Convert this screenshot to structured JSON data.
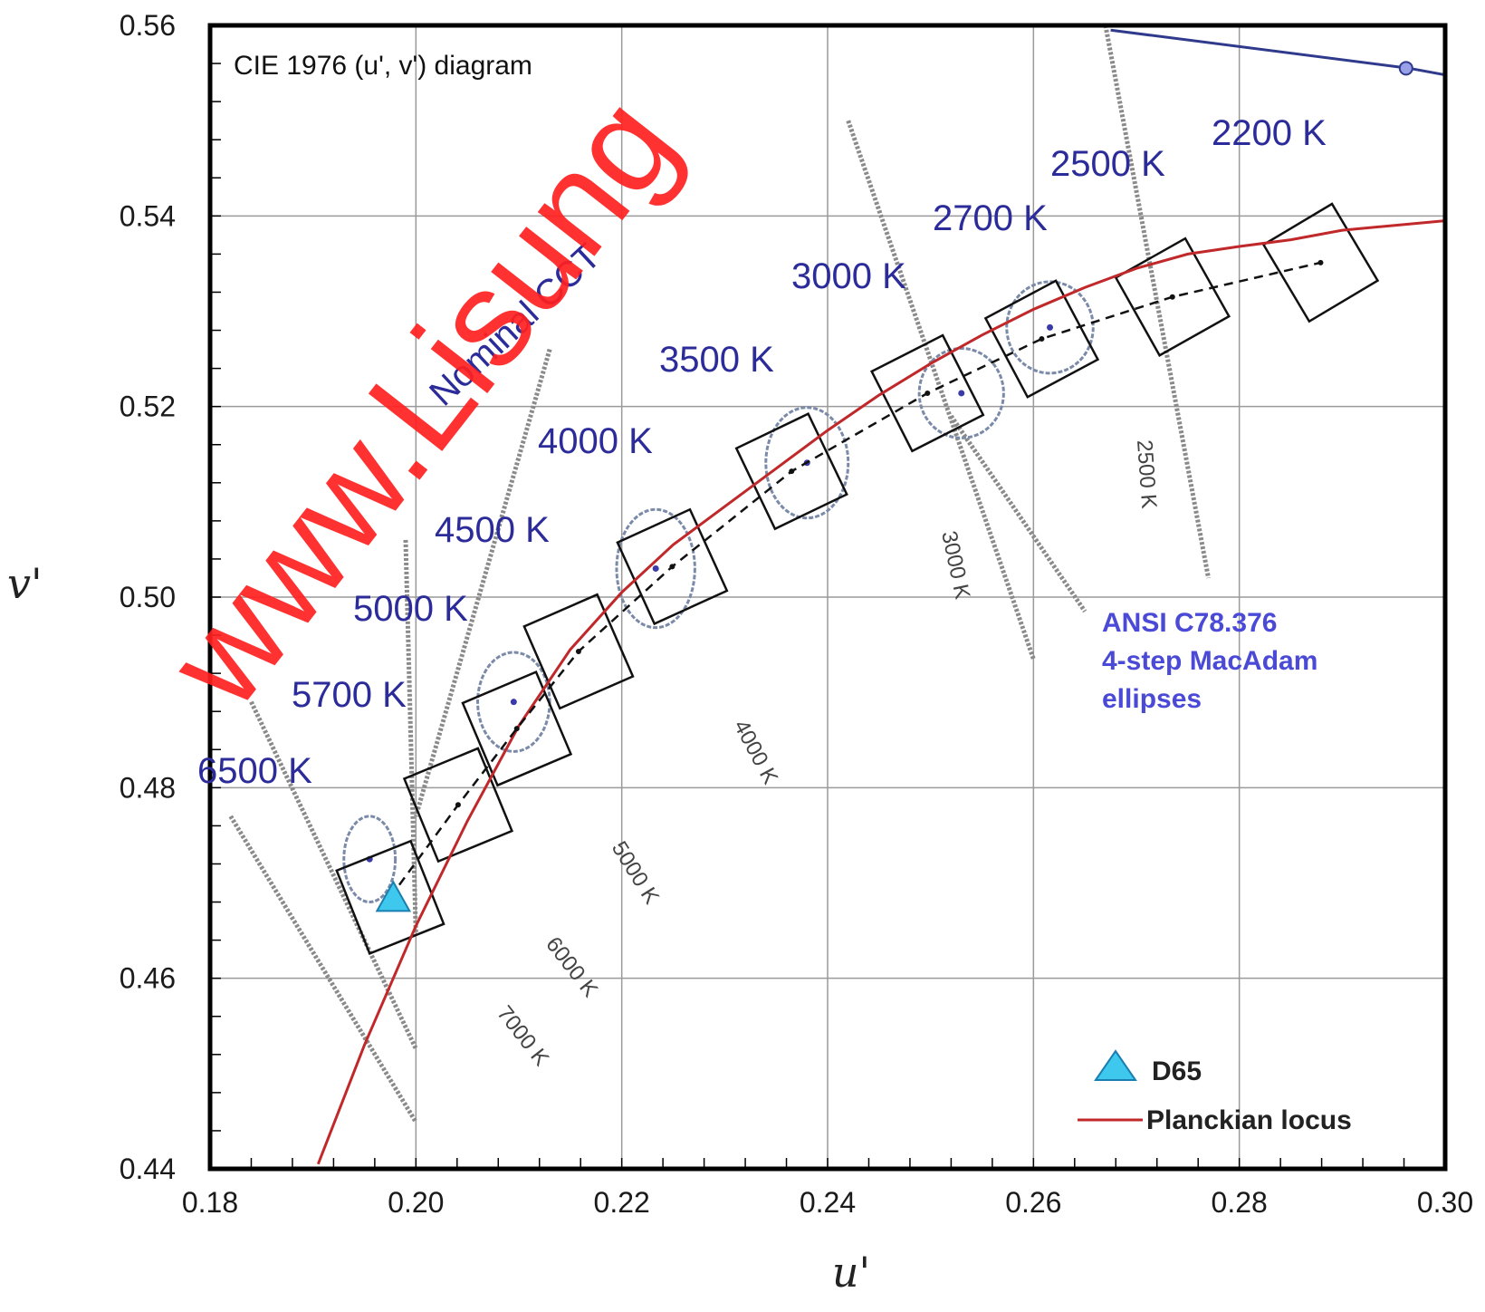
{
  "chart_data": {
    "type": "scatter",
    "title": "CIE 1976 (u', v') diagram",
    "xlabel": "u'",
    "ylabel": "v'",
    "xlim": [
      0.18,
      0.3
    ],
    "ylim": [
      0.44,
      0.56
    ],
    "xticks": [
      "0.18",
      "0.20",
      "0.22",
      "0.24",
      "0.26",
      "0.28",
      "0.30"
    ],
    "yticks": [
      "0.44",
      "0.46",
      "0.48",
      "0.50",
      "0.52",
      "0.54",
      "0.56"
    ],
    "grid": true,
    "annotation_nominal_cct": "Nominal CCT",
    "annotation_ansi": [
      "ANSI C78.376",
      "4-step MacAdam",
      "ellipses"
    ],
    "watermark": "www.Lisung",
    "legend": {
      "position": "bottom-right",
      "items": [
        {
          "label": "D65",
          "marker": "triangle",
          "color": "#3ec8ee"
        },
        {
          "label": "Planckian locus",
          "marker": "line",
          "color": "#c0282a"
        }
      ]
    },
    "planckian_locus": {
      "color": "#c0282a",
      "points": [
        [
          0.1905,
          0.4405
        ],
        [
          0.195,
          0.453
        ],
        [
          0.2,
          0.4655
        ],
        [
          0.205,
          0.4765
        ],
        [
          0.21,
          0.4865
        ],
        [
          0.215,
          0.4945
        ],
        [
          0.22,
          0.5005
        ],
        [
          0.225,
          0.5055
        ],
        [
          0.23,
          0.5095
        ],
        [
          0.235,
          0.5135
        ],
        [
          0.24,
          0.5175
        ],
        [
          0.245,
          0.5212
        ],
        [
          0.25,
          0.5245
        ],
        [
          0.255,
          0.5275
        ],
        [
          0.26,
          0.5302
        ],
        [
          0.265,
          0.5325
        ],
        [
          0.27,
          0.5345
        ],
        [
          0.275,
          0.536
        ],
        [
          0.28,
          0.5368
        ],
        [
          0.285,
          0.5375
        ],
        [
          0.29,
          0.5385
        ],
        [
          0.3,
          0.5395
        ]
      ]
    },
    "nominal_cct_points": [
      {
        "label": "6500 K",
        "center": [
          0.1975,
          0.4685
        ],
        "box_half": 0.0045,
        "ellipse": [
          0.1955,
          0.4725,
          0.0025,
          0.0045
        ]
      },
      {
        "label": "5700 K",
        "center": [
          0.2041,
          0.4782
        ]
      },
      {
        "label": "5000 K",
        "center": [
          0.2098,
          0.4862
        ],
        "box_half": 0.0045,
        "ellipse": [
          0.2095,
          0.489,
          0.0035,
          0.0052
        ]
      },
      {
        "label": "4500 K",
        "center": [
          0.2158,
          0.4943
        ]
      },
      {
        "label": "4000 K",
        "center": [
          0.2249,
          0.5032
        ],
        "box_half": 0.0045,
        "ellipse": [
          0.2233,
          0.503,
          0.0038,
          0.0062
        ]
      },
      {
        "label": "3500 K",
        "center": [
          0.2365,
          0.5132
        ],
        "box_half": 0.0045,
        "ellipse": [
          0.238,
          0.5141,
          0.004,
          0.0058
        ]
      },
      {
        "label": "3000 K",
        "center": [
          0.2497,
          0.5214
        ],
        "box_half": 0.0045,
        "ellipse": [
          0.253,
          0.5214,
          0.0041,
          0.0047
        ]
      },
      {
        "label": "2700 K",
        "center": [
          0.2608,
          0.5271
        ],
        "box_half": 0.0045,
        "ellipse": [
          0.2616,
          0.5283,
          0.0042,
          0.0048
        ]
      },
      {
        "label": "2500 K",
        "center": [
          0.2735,
          0.5315
        ]
      },
      {
        "label": "2200 K",
        "center": [
          0.2879,
          0.5351
        ]
      }
    ],
    "isotemperature_lines": [
      {
        "label": "7000 K",
        "from": [
          0.182,
          0.477
        ],
        "to": [
          0.2,
          0.4449
        ]
      },
      {
        "label": "6000 K",
        "from": [
          0.184,
          0.489
        ],
        "to": [
          0.2,
          0.4526
        ]
      },
      {
        "label": "5000 K",
        "from": [
          0.199,
          0.506
        ],
        "to": [
          0.2,
          0.4645
        ]
      },
      {
        "label": "4000 K",
        "from": [
          0.213,
          0.526
        ],
        "to": [
          0.2,
          0.477
        ]
      },
      {
        "label": "3000 K",
        "from": [
          0.242,
          0.55
        ],
        "to": [
          0.26,
          0.4935
        ]
      },
      {
        "label": "3000 K_b",
        "from": [
          0.252,
          0.519
        ],
        "to": [
          0.265,
          0.4985
        ]
      },
      {
        "label": "2500 K",
        "from": [
          0.267,
          0.56
        ],
        "to": [
          0.277,
          0.502
        ]
      }
    ],
    "spectrum_locus_segment": {
      "color": "#2f3a8c",
      "points": [
        [
          0.2675,
          0.5595
        ],
        [
          0.2965,
          0.5555
        ],
        [
          0.3,
          0.5548
        ]
      ],
      "marker": [
        0.2962,
        0.5555
      ]
    },
    "d65": [
      0.1978,
      0.4684
    ]
  }
}
